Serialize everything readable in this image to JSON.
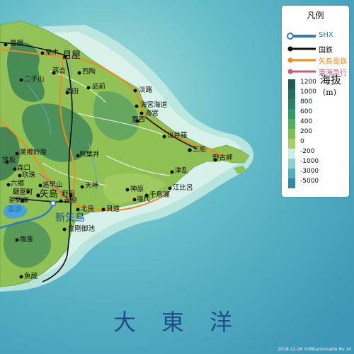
{
  "map": {
    "ocean_label": "大　東　洋",
    "credit": "2018-12-26 ©Mikankonable No.14",
    "colors": {
      "deep_sea": "#3f9ab8",
      "shallow_sea": "#82cfd4",
      "lowland": "#8dc454",
      "highland": "#3b7d50"
    },
    "places": [
      {
        "name": "曽根"
      },
      {
        "name": "栗木"
      },
      {
        "name": "月屋"
      },
      {
        "name": "二子山"
      },
      {
        "name": "落合"
      },
      {
        "name": "西陶"
      },
      {
        "name": "品前"
      },
      {
        "name": "酒田"
      },
      {
        "name": "淡路"
      },
      {
        "name": "海宮海道"
      },
      {
        "name": "海宮"
      },
      {
        "name": "霊西"
      },
      {
        "name": "出井羅"
      },
      {
        "name": "三船"
      },
      {
        "name": "野古岬"
      },
      {
        "name": "美郷鈴原"
      },
      {
        "name": "照葉井"
      },
      {
        "name": "甘坂"
      },
      {
        "name": "森口"
      },
      {
        "name": "玖珠"
      },
      {
        "name": "六郷"
      },
      {
        "name": "追早山"
      },
      {
        "name": "天神"
      },
      {
        "name": "鍵屋町"
      },
      {
        "name": "矢島"
      },
      {
        "name": "野田"
      },
      {
        "name": "茶碗塚"
      },
      {
        "name": "吉原"
      },
      {
        "name": "神原"
      },
      {
        "name": "江比呂"
      },
      {
        "name": "千鳥瀬"
      },
      {
        "name": "塩代"
      },
      {
        "name": "津乱"
      },
      {
        "name": "北良"
      },
      {
        "name": "貝道"
      },
      {
        "name": "金剛御池"
      },
      {
        "name": "塩釜"
      },
      {
        "name": "魚蔵"
      },
      {
        "name": "新矢島"
      },
      {
        "name": "藻湖"
      }
    ]
  },
  "legend": {
    "title": "凡例",
    "lines": [
      {
        "label": "SHX",
        "color": "#2e78c4"
      },
      {
        "label": "国鉄",
        "color": "#111111"
      },
      {
        "label": "矢島電鉄",
        "color": "#f28a1c"
      },
      {
        "label": "東海急行",
        "color": "#c8607a"
      }
    ],
    "elevation": {
      "title": "海抜",
      "unit": "(m)",
      "stops": [
        {
          "label": "1200",
          "color": "#1c5c50"
        },
        {
          "label": "1000",
          "color": "#21705a"
        },
        {
          "label": "800",
          "color": "#268466"
        },
        {
          "label": "600",
          "color": "#2e9a6e"
        },
        {
          "label": "400",
          "color": "#4fb060"
        },
        {
          "label": "200",
          "color": "#7ec24e"
        },
        {
          "label": "0",
          "color": "#a8d068"
        },
        {
          "label": "-200",
          "color": "#cdeee4"
        },
        {
          "label": "-1000",
          "color": "#8dd2d2"
        },
        {
          "label": "-3000",
          "color": "#4fb0c0"
        },
        {
          "label": "-5000",
          "color": "#2a8aa8"
        }
      ]
    }
  }
}
